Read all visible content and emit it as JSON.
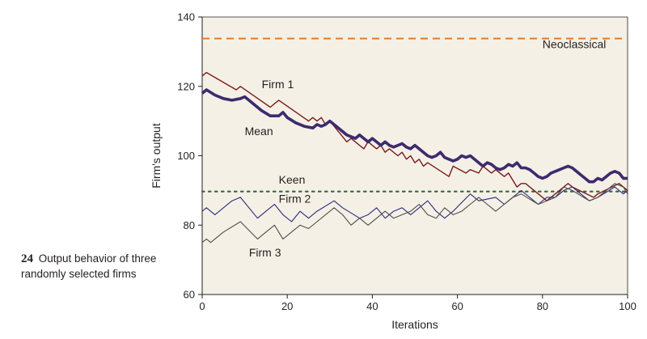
{
  "caption": {
    "number": "24",
    "text": "Output behavior of three randomly selected firms"
  },
  "chart_data": {
    "type": "line",
    "xlabel": "Iterations",
    "ylabel": "Firm's output",
    "xlim": [
      0,
      100
    ],
    "ylim": [
      60,
      140
    ],
    "xticks": [
      0,
      20,
      40,
      60,
      80,
      100
    ],
    "yticks": [
      60,
      80,
      100,
      120,
      140
    ],
    "colors": {
      "neoclassical": "#e07b2a",
      "keen": "#2e6b3a",
      "firm1": "#7a1c1c",
      "mean": "#3d2a6e",
      "firm2": "#2d2a7a",
      "firm3": "#4d4d4d"
    },
    "annotations": [
      {
        "text": "Neoclassical",
        "x": 80,
        "y": 131
      },
      {
        "text": "Firm 1",
        "x": 14,
        "y": 119.5
      },
      {
        "text": "Mean",
        "x": 10,
        "y": 106
      },
      {
        "text": "Keen",
        "x": 18,
        "y": 92
      },
      {
        "text": "Firm 2",
        "x": 18,
        "y": 86.5
      },
      {
        "text": "Firm 3",
        "x": 11,
        "y": 71
      }
    ],
    "series": [
      {
        "key": "neoclassical",
        "x": [
          0,
          100
        ],
        "y": [
          133.8,
          133.8
        ]
      },
      {
        "key": "keen",
        "x": [
          0,
          100
        ],
        "y": [
          89.7,
          89.7
        ]
      },
      {
        "key": "firm1",
        "x": [
          0,
          1,
          8,
          9,
          16,
          17,
          18,
          25,
          26,
          27,
          28,
          29,
          30,
          34,
          35,
          38,
          39,
          41,
          42,
          43,
          44,
          46,
          47,
          48,
          49,
          50,
          51,
          52,
          53,
          58,
          59,
          62,
          63,
          65,
          66,
          68,
          69,
          71,
          72,
          74,
          75,
          76,
          77,
          81,
          82,
          86,
          87,
          92,
          93,
          98,
          99,
          100
        ],
        "y": [
          123,
          124,
          119,
          120,
          114,
          115,
          116,
          110,
          111,
          110,
          111,
          109,
          110,
          104,
          105,
          102,
          104,
          102,
          103,
          101,
          102,
          100,
          101,
          99,
          100,
          98,
          99,
          97,
          98,
          94,
          97,
          95,
          96,
          95,
          97,
          95,
          96,
          94,
          95,
          91,
          92,
          92,
          91,
          87,
          88,
          92,
          91,
          88,
          89,
          92,
          91,
          90
        ]
      },
      {
        "key": "mean",
        "x": [
          0,
          1,
          3,
          5,
          7,
          9,
          10,
          12,
          14,
          16,
          18,
          19,
          20,
          22,
          24,
          26,
          27,
          28,
          29,
          30,
          32,
          34,
          36,
          37,
          38,
          39,
          40,
          42,
          43,
          44,
          45,
          47,
          48,
          49,
          50,
          52,
          53,
          54,
          55,
          56,
          57,
          58,
          59,
          60,
          61,
          62,
          63,
          64,
          65,
          66,
          67,
          68,
          69,
          70,
          71,
          72,
          73,
          74,
          75,
          76,
          77,
          78,
          79,
          80,
          81,
          82,
          83,
          84,
          85,
          86,
          87,
          88,
          89,
          90,
          91,
          92,
          93,
          94,
          95,
          96,
          97,
          98,
          99,
          100
        ],
        "y": [
          118,
          119,
          117.5,
          116.5,
          116,
          116.5,
          117,
          115,
          113,
          111.5,
          111.5,
          112.5,
          111,
          109.5,
          108.5,
          108,
          109,
          108.5,
          109,
          110,
          108,
          106,
          105,
          106,
          105,
          104,
          105,
          103,
          104,
          103,
          102.5,
          103.5,
          102.5,
          102,
          103,
          101,
          100,
          99.5,
          100,
          101,
          99.5,
          99,
          98.5,
          99,
          100,
          99.5,
          100,
          99,
          98,
          97,
          98,
          97.5,
          96.5,
          96,
          96.5,
          97.5,
          97,
          98,
          96.5,
          96.5,
          96,
          95,
          94,
          93.5,
          94,
          95,
          95.5,
          96,
          96.5,
          97,
          96.5,
          95.5,
          94.5,
          93.5,
          92.5,
          92.5,
          93.5,
          93,
          94,
          95,
          95.5,
          95,
          93.5,
          93.5
        ]
      },
      {
        "key": "firm2",
        "x": [
          0,
          1,
          3,
          7,
          9,
          13,
          15,
          17,
          19,
          21,
          23,
          25,
          27,
          31,
          33,
          37,
          39,
          41,
          43,
          45,
          47,
          49,
          51,
          53,
          55,
          57,
          59,
          63,
          65,
          69,
          71,
          73,
          75,
          79,
          81,
          83,
          85,
          87,
          91,
          93,
          97,
          99,
          100
        ],
        "y": [
          84,
          85,
          83,
          87,
          88,
          82,
          84,
          86,
          83,
          81,
          84,
          82,
          84,
          87,
          85,
          82,
          83,
          85,
          82,
          84,
          85,
          83,
          85,
          87,
          84,
          82,
          84,
          89,
          87,
          88,
          86,
          88,
          90,
          86,
          88,
          88,
          90,
          91,
          87,
          88,
          91,
          89,
          90
        ]
      },
      {
        "key": "firm3",
        "x": [
          0,
          1,
          2,
          5,
          9,
          13,
          15,
          17,
          19,
          21,
          23,
          25,
          27,
          31,
          33,
          35,
          37,
          39,
          41,
          43,
          45,
          47,
          49,
          51,
          53,
          55,
          57,
          59,
          61,
          63,
          65,
          67,
          69,
          71,
          73,
          75,
          79,
          81,
          83,
          85,
          87,
          91,
          93,
          97,
          99,
          100
        ],
        "y": [
          75,
          76,
          75,
          78,
          81,
          76,
          78,
          80,
          76,
          78,
          80,
          79,
          81,
          85,
          83,
          80,
          82,
          80,
          82,
          84,
          82,
          83,
          84,
          86,
          83,
          82,
          85,
          83,
          84,
          86,
          88,
          86,
          84,
          86,
          88,
          89,
          86,
          87,
          88,
          91,
          90,
          87,
          88,
          92,
          91,
          89
        ]
      }
    ]
  }
}
